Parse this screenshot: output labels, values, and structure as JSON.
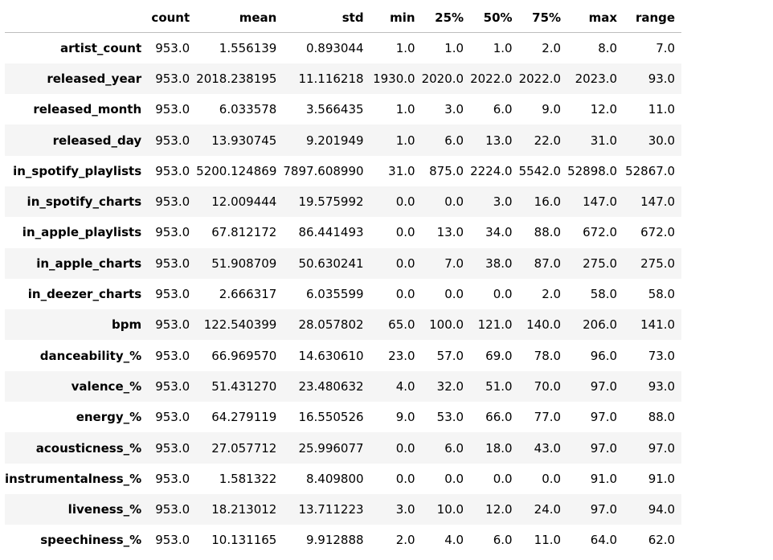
{
  "table": {
    "columns": [
      "count",
      "mean",
      "std",
      "min",
      "25%",
      "50%",
      "75%",
      "max",
      "range"
    ],
    "rows": [
      {
        "label": "artist_count",
        "values": [
          "953.0",
          "1.556139",
          "0.893044",
          "1.0",
          "1.0",
          "1.0",
          "2.0",
          "8.0",
          "7.0"
        ]
      },
      {
        "label": "released_year",
        "values": [
          "953.0",
          "2018.238195",
          "11.116218",
          "1930.0",
          "2020.0",
          "2022.0",
          "2022.0",
          "2023.0",
          "93.0"
        ]
      },
      {
        "label": "released_month",
        "values": [
          "953.0",
          "6.033578",
          "3.566435",
          "1.0",
          "3.0",
          "6.0",
          "9.0",
          "12.0",
          "11.0"
        ]
      },
      {
        "label": "released_day",
        "values": [
          "953.0",
          "13.930745",
          "9.201949",
          "1.0",
          "6.0",
          "13.0",
          "22.0",
          "31.0",
          "30.0"
        ]
      },
      {
        "label": "in_spotify_playlists",
        "values": [
          "953.0",
          "5200.124869",
          "7897.608990",
          "31.0",
          "875.0",
          "2224.0",
          "5542.0",
          "52898.0",
          "52867.0"
        ]
      },
      {
        "label": "in_spotify_charts",
        "values": [
          "953.0",
          "12.009444",
          "19.575992",
          "0.0",
          "0.0",
          "3.0",
          "16.0",
          "147.0",
          "147.0"
        ]
      },
      {
        "label": "in_apple_playlists",
        "values": [
          "953.0",
          "67.812172",
          "86.441493",
          "0.0",
          "13.0",
          "34.0",
          "88.0",
          "672.0",
          "672.0"
        ]
      },
      {
        "label": "in_apple_charts",
        "values": [
          "953.0",
          "51.908709",
          "50.630241",
          "0.0",
          "7.0",
          "38.0",
          "87.0",
          "275.0",
          "275.0"
        ]
      },
      {
        "label": "in_deezer_charts",
        "values": [
          "953.0",
          "2.666317",
          "6.035599",
          "0.0",
          "0.0",
          "0.0",
          "2.0",
          "58.0",
          "58.0"
        ]
      },
      {
        "label": "bpm",
        "values": [
          "953.0",
          "122.540399",
          "28.057802",
          "65.0",
          "100.0",
          "121.0",
          "140.0",
          "206.0",
          "141.0"
        ]
      },
      {
        "label": "danceability_%",
        "values": [
          "953.0",
          "66.969570",
          "14.630610",
          "23.0",
          "57.0",
          "69.0",
          "78.0",
          "96.0",
          "73.0"
        ]
      },
      {
        "label": "valence_%",
        "values": [
          "953.0",
          "51.431270",
          "23.480632",
          "4.0",
          "32.0",
          "51.0",
          "70.0",
          "97.0",
          "93.0"
        ]
      },
      {
        "label": "energy_%",
        "values": [
          "953.0",
          "64.279119",
          "16.550526",
          "9.0",
          "53.0",
          "66.0",
          "77.0",
          "97.0",
          "88.0"
        ]
      },
      {
        "label": "acousticness_%",
        "values": [
          "953.0",
          "27.057712",
          "25.996077",
          "0.0",
          "6.0",
          "18.0",
          "43.0",
          "97.0",
          "97.0"
        ]
      },
      {
        "label": "instrumentalness_%",
        "values": [
          "953.0",
          "1.581322",
          "8.409800",
          "0.0",
          "0.0",
          "0.0",
          "0.0",
          "91.0",
          "91.0"
        ]
      },
      {
        "label": "liveness_%",
        "values": [
          "953.0",
          "18.213012",
          "13.711223",
          "3.0",
          "10.0",
          "12.0",
          "24.0",
          "97.0",
          "94.0"
        ]
      },
      {
        "label": "speechiness_%",
        "values": [
          "953.0",
          "10.131165",
          "9.912888",
          "2.0",
          "4.0",
          "6.0",
          "11.0",
          "64.0",
          "62.0"
        ]
      }
    ]
  },
  "colors": {
    "stripe": "#f5f5f5",
    "header_rule": "#bdbdbd",
    "text": "#000000"
  }
}
